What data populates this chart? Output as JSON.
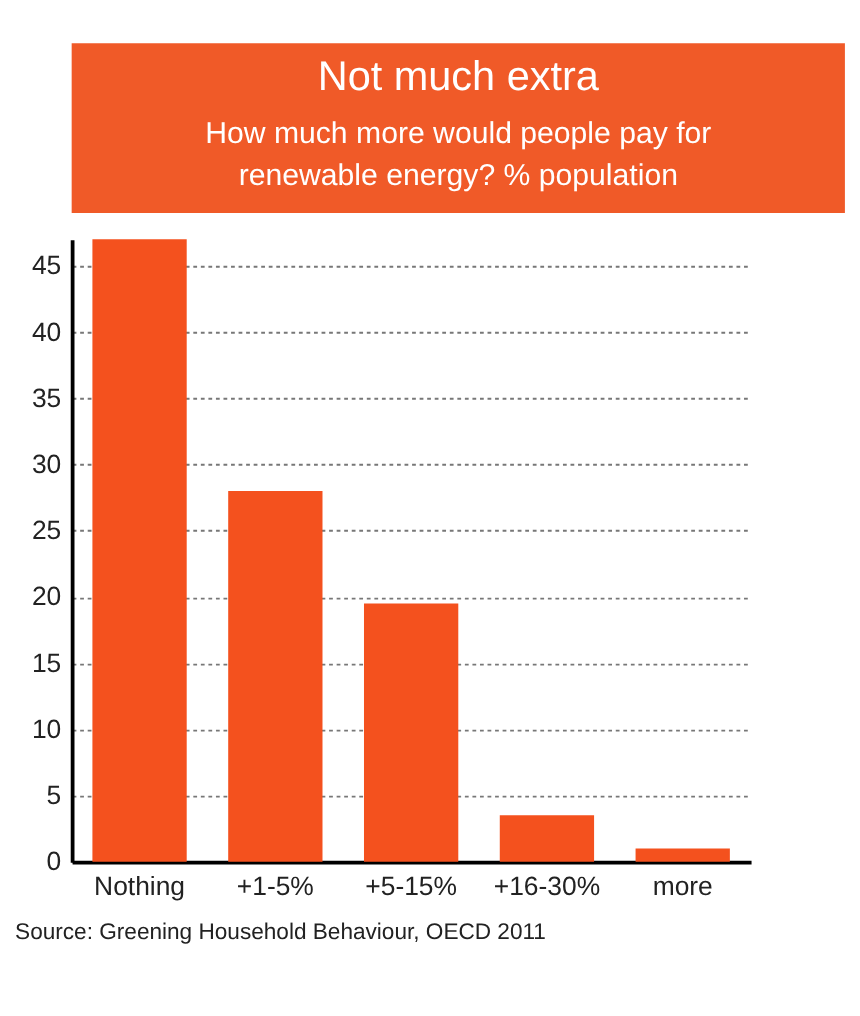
{
  "chart_data": {
    "type": "bar",
    "title": "Not much extra",
    "subtitle": "How much more would people pay for\nrenewable energy? % population",
    "categories": [
      "Nothing",
      "+1-5%",
      "+5-15%",
      "+16-30%",
      "more"
    ],
    "values": [
      47,
      28,
      19.5,
      3.5,
      1
    ],
    "color": "#f4511e",
    "ylim": [
      0,
      47
    ],
    "yticks": [
      0,
      5,
      10,
      15,
      20,
      25,
      30,
      35,
      40,
      45
    ],
    "grid": "y",
    "annotations": [
      "Source: Greening Household Behaviour, OECD 2011"
    ]
  }
}
